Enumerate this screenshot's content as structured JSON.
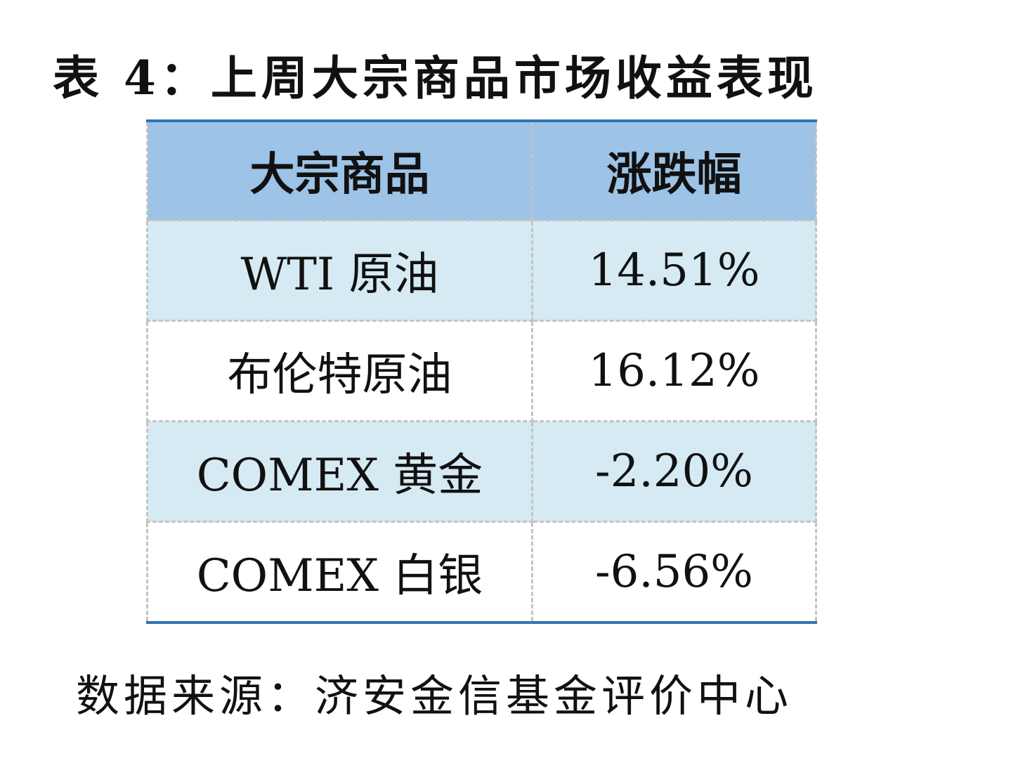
{
  "title": "表 4：上周大宗商品市场收益表现",
  "table": {
    "header": [
      "大宗商品",
      "涨跌幅"
    ],
    "rows": [
      [
        "WTI 原油",
        "14.51%"
      ],
      [
        "布伦特原油",
        "16.12%"
      ],
      [
        "COMEX 黄金",
        "-2.20%"
      ],
      [
        "COMEX 白银",
        "-6.56%"
      ]
    ]
  },
  "source": "数据来源：济安金信基金评价中心"
}
